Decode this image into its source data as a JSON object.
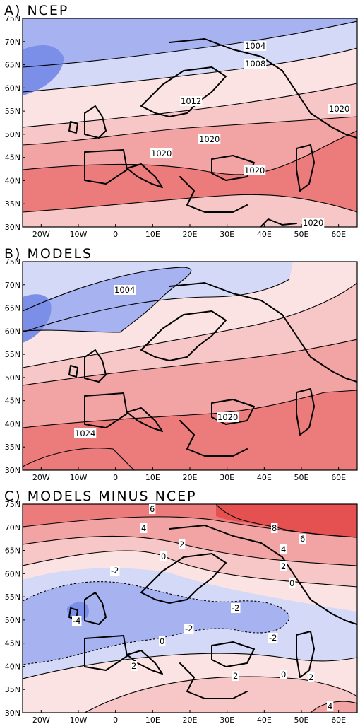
{
  "panels": [
    {
      "id": "a",
      "title": "A) NCEP",
      "contour_labels": [
        "1004",
        "1008",
        "1012",
        "1020",
        "1020",
        "1020",
        "1020",
        "1020",
        "1020"
      ]
    },
    {
      "id": "b",
      "title": "B) MODELS",
      "contour_labels": [
        "1004",
        "1020",
        "1024"
      ]
    },
    {
      "id": "c",
      "title": "C) MODELS MINUS NCEP",
      "contour_labels": [
        "6",
        "4",
        "8",
        "6",
        "2",
        "4",
        "0",
        "2",
        "-2",
        "0",
        "-2",
        "-4",
        "-2",
        "-2",
        "0",
        "2",
        "2",
        "0",
        "2",
        "4"
      ]
    }
  ],
  "axes": {
    "lat_ticks": [
      "75N",
      "70N",
      "65N",
      "60N",
      "55N",
      "50N",
      "45N",
      "40N",
      "35N",
      "30N"
    ],
    "lon_ticks": [
      "20W",
      "10W",
      "0",
      "10E",
      "20E",
      "30E",
      "40E",
      "50E",
      "60E"
    ]
  },
  "colors": {
    "strong_blue": "#7b8ee8",
    "blue": "#a6b3f0",
    "light_blue": "#d3d9f7",
    "lightest_pink": "#fbe3e3",
    "light_pink": "#f7c7c7",
    "pink": "#f2a3a3",
    "red": "#ec7c7c",
    "strong_red": "#e55050"
  }
}
